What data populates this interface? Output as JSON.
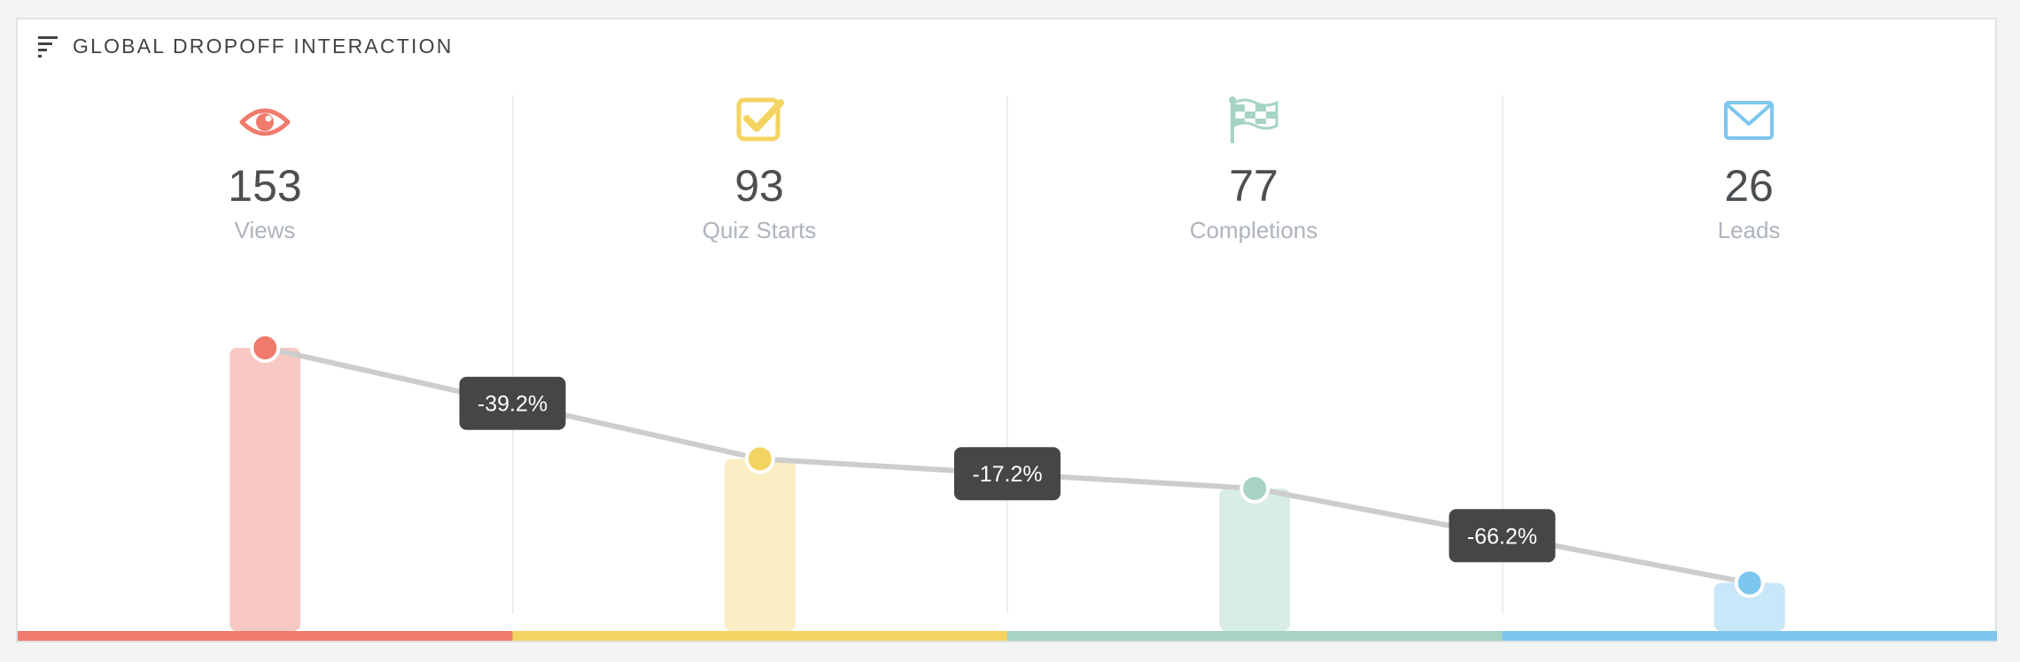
{
  "header": {
    "title": "GLOBAL DROPOFF INTERACTION",
    "icon": "funnel-bars-icon"
  },
  "columns": [
    {
      "label": "Views",
      "value": "153",
      "icon": "eye-icon",
      "color": "#f07a6b",
      "light": "#f8c9c3"
    },
    {
      "label": "Quiz Starts",
      "value": "93",
      "icon": "checkbox-icon",
      "color": "#f3d461",
      "light": "#fbeec4"
    },
    {
      "label": "Completions",
      "value": "77",
      "icon": "checkered-flag-icon",
      "color": "#a6d3c5",
      "light": "#d8ede7"
    },
    {
      "label": "Leads",
      "value": "26",
      "icon": "envelope-icon",
      "color": "#7dc6ee",
      "light": "#c8e7f8"
    }
  ],
  "chart_data": {
    "type": "bar",
    "categories": [
      "Views",
      "Quiz Starts",
      "Completions",
      "Leads"
    ],
    "values": [
      153,
      93,
      77,
      26
    ],
    "ylim": [
      0,
      153
    ],
    "dropoffs": [
      "-39.2%",
      "-17.2%",
      "-66.2%"
    ],
    "grid": false,
    "legend": "none"
  }
}
